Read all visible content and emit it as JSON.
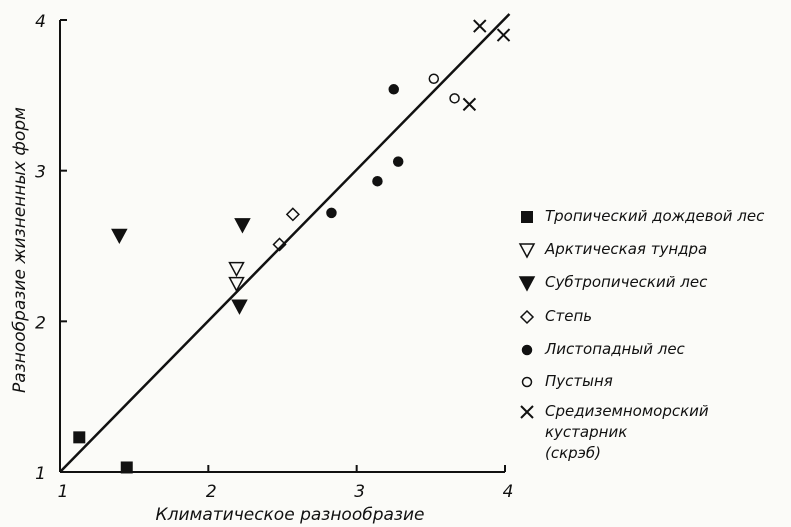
{
  "chart_data": {
    "type": "scatter",
    "x_label": "Климатическое разнообразие",
    "y_label": "Разнообразие жизненных форм",
    "xlim": [
      1,
      4
    ],
    "ylim": [
      1,
      4
    ],
    "xticks": [
      1,
      2,
      3,
      4
    ],
    "yticks": [
      1,
      2,
      3,
      4
    ],
    "fit_line": {
      "x": [
        1,
        4.03
      ],
      "y": [
        1,
        4.04
      ]
    },
    "series": [
      {
        "name": "Тропический дождевой лес",
        "marker": "square",
        "color": "#111",
        "x": [
          1.13,
          1.45
        ],
        "y": [
          1.23,
          1.03
        ]
      },
      {
        "name": "Арктическая тундра",
        "marker": "triangle-down-open",
        "color": "#111",
        "x": [
          2.19,
          2.19
        ],
        "y": [
          2.35,
          2.25
        ]
      },
      {
        "name": "Субтропический лес",
        "marker": "triangle-down",
        "color": "#111",
        "x": [
          1.4,
          2.23,
          2.21
        ],
        "y": [
          2.57,
          2.64,
          2.1
        ]
      },
      {
        "name": "Степь",
        "marker": "diamond-open",
        "color": "#111",
        "x": [
          2.57,
          2.48
        ],
        "y": [
          2.71,
          2.51
        ]
      },
      {
        "name": "Листопадный лес",
        "marker": "circle",
        "color": "#111",
        "x": [
          2.83,
          3.14,
          3.28,
          3.25
        ],
        "y": [
          2.72,
          2.93,
          3.06,
          3.54
        ]
      },
      {
        "name": "Пустыня",
        "marker": "circle-open",
        "color": "#111",
        "x": [
          3.52,
          3.66
        ],
        "y": [
          3.61,
          3.48
        ]
      },
      {
        "name": "Средиземноморский кустарник\n(скрэб)",
        "marker": "x",
        "color": "#111",
        "x": [
          3.83,
          3.99,
          3.76
        ],
        "y": [
          3.96,
          3.9,
          3.44
        ]
      }
    ]
  }
}
